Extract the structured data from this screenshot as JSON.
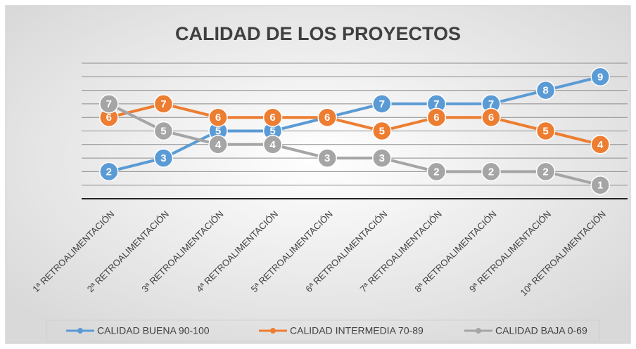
{
  "chart_data": {
    "type": "line",
    "title": "CALIDAD DE LOS PROYECTOS",
    "categories": [
      "1ª RETROALIMENTACIÓN",
      "2ª RETROALIMENTACIÓN",
      "3ª RETROALIMENTACIÓN",
      "4ª RETROALIMENTACIÓN",
      "5ª RETROALIMENTACIÓN",
      "6ª RETROALIMENTACIÓN",
      "7ª RETROALIMENTACIÓN",
      "8ª RETROALIMENTACIÓN",
      "9ª RETROALIMENTACIÓN",
      "10ª RETROALIMENTACIÓN"
    ],
    "series": [
      {
        "name": "CALIDAD BUENA 90-100",
        "color": "#5b9bd5",
        "values": [
          2,
          3,
          5,
          5,
          6,
          7,
          7,
          7,
          8,
          9
        ]
      },
      {
        "name": "CALIDAD INTERMEDIA 70-89",
        "color": "#ed7d31",
        "values": [
          6,
          7,
          6,
          6,
          6,
          5,
          6,
          6,
          5,
          4
        ]
      },
      {
        "name": "CALIDAD  BAJA 0-69",
        "color": "#a5a5a5",
        "values": [
          7,
          5,
          4,
          4,
          3,
          3,
          2,
          2,
          2,
          1
        ]
      }
    ],
    "ylim": [
      0,
      10
    ],
    "yticks": [
      0,
      1,
      2,
      3,
      4,
      5,
      6,
      7,
      8,
      9,
      10
    ],
    "grid": true,
    "legend": "bottom"
  }
}
